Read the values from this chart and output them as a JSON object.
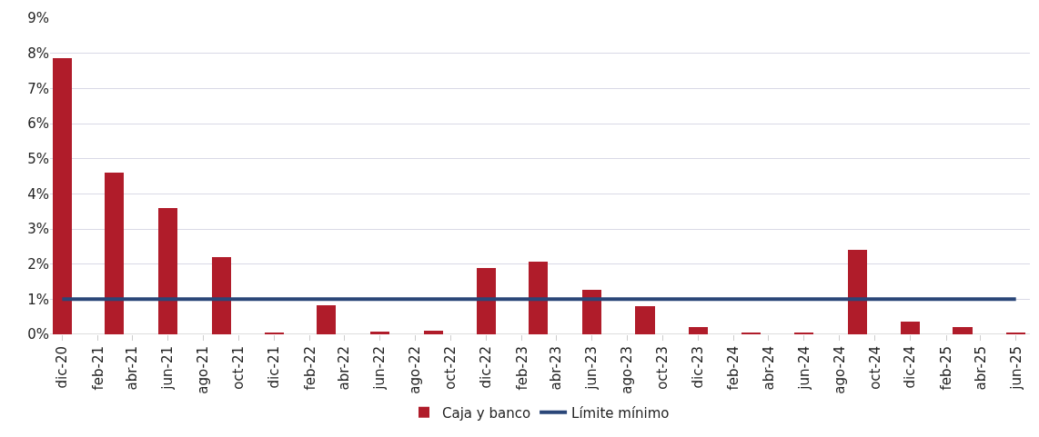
{
  "chart_data": {
    "type": "bar",
    "x": [
      "2020-12",
      "2021-03",
      "2021-06",
      "2021-09",
      "2021-12",
      "2022-03",
      "2022-06",
      "2022-09",
      "2022-12",
      "2023-03",
      "2023-06",
      "2023-09",
      "2023-12",
      "2024-03",
      "2024-06",
      "2024-09",
      "2024-12",
      "2025-03",
      "2025-06"
    ],
    "series": [
      {
        "name": "Caja y banco",
        "color": "#b01c2a",
        "values": [
          7.85,
          4.6,
          3.6,
          2.2,
          0.05,
          0.82,
          0.07,
          0.1,
          1.9,
          2.07,
          1.27,
          0.8,
          0.2,
          0.05,
          0.05,
          2.4,
          0.35,
          0.2,
          0.05
        ]
      }
    ],
    "ref_lines": [
      {
        "axis": "y",
        "value": 1,
        "label": "Límite mínimo",
        "color": "#2a4678"
      }
    ],
    "xlim": [
      "2020-11-10",
      "2025-06-25"
    ],
    "xticks": [
      {
        "value": "2020-12",
        "label": "dic-20"
      },
      {
        "value": "2021-02",
        "label": "feb-21"
      },
      {
        "value": "2021-04",
        "label": "abr-21"
      },
      {
        "value": "2021-06",
        "label": "jun-21"
      },
      {
        "value": "2021-08",
        "label": "ago-21"
      },
      {
        "value": "2021-10",
        "label": "oct-21"
      },
      {
        "value": "2021-12",
        "label": "dic-21"
      },
      {
        "value": "2022-02",
        "label": "feb-22"
      },
      {
        "value": "2022-04",
        "label": "abr-22"
      },
      {
        "value": "2022-06",
        "label": "jun-22"
      },
      {
        "value": "2022-08",
        "label": "ago-22"
      },
      {
        "value": "2022-10",
        "label": "oct-22"
      },
      {
        "value": "2022-12",
        "label": "dic-22"
      },
      {
        "value": "2023-02",
        "label": "feb-23"
      },
      {
        "value": "2023-04",
        "label": "abr-23"
      },
      {
        "value": "2023-06",
        "label": "jun-23"
      },
      {
        "value": "2023-08",
        "label": "ago-23"
      },
      {
        "value": "2023-10",
        "label": "oct-23"
      },
      {
        "value": "2023-12",
        "label": "dic-23"
      },
      {
        "value": "2024-02",
        "label": "feb-24"
      },
      {
        "value": "2024-04",
        "label": "abr-24"
      },
      {
        "value": "2024-06",
        "label": "jun-24"
      },
      {
        "value": "2024-08",
        "label": "ago-24"
      },
      {
        "value": "2024-10",
        "label": "oct-24"
      },
      {
        "value": "2024-12",
        "label": "dic-24"
      },
      {
        "value": "2025-02",
        "label": "feb-25"
      },
      {
        "value": "2025-04",
        "label": "abr-25"
      },
      {
        "value": "2025-06",
        "label": "jun-25"
      }
    ],
    "ylim": [
      0,
      9
    ],
    "yticks": [
      {
        "value": 0,
        "label": "0%"
      },
      {
        "value": 1,
        "label": "1%"
      },
      {
        "value": 2,
        "label": "2%"
      },
      {
        "value": 3,
        "label": "3%"
      },
      {
        "value": 4,
        "label": "4%"
      },
      {
        "value": 5,
        "label": "5%"
      },
      {
        "value": 6,
        "label": "6%"
      },
      {
        "value": 7,
        "label": "7%"
      },
      {
        "value": 8,
        "label": "8%"
      },
      {
        "value": 9,
        "label": "9%"
      }
    ],
    "grid": "y",
    "legend": "bottom"
  }
}
